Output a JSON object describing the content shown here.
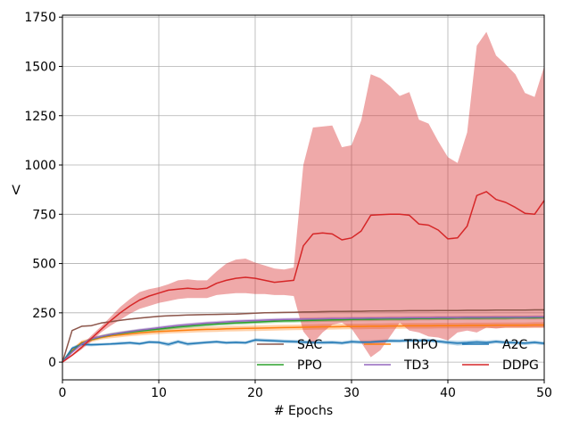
{
  "chart_data": {
    "type": "line",
    "title": "",
    "xlabel": "# Epochs",
    "ylabel": "V",
    "xlim": [
      0,
      50
    ],
    "ylim": [
      -90,
      1760
    ],
    "x_ticks": [
      0,
      10,
      20,
      30,
      40,
      50
    ],
    "y_ticks": [
      0,
      250,
      500,
      750,
      1000,
      1250,
      1500,
      1750
    ],
    "grid": true,
    "legend_position": "lower-right",
    "x": [
      0,
      1,
      2,
      3,
      4,
      5,
      6,
      7,
      8,
      9,
      10,
      11,
      12,
      13,
      14,
      15,
      16,
      17,
      18,
      19,
      20,
      21,
      22,
      23,
      24,
      25,
      26,
      27,
      28,
      29,
      30,
      31,
      32,
      33,
      34,
      35,
      36,
      37,
      38,
      39,
      40,
      41,
      42,
      43,
      44,
      45,
      46,
      47,
      48,
      49,
      50
    ],
    "series": [
      {
        "name": "SAC",
        "color": "#8c564b",
        "mean": [
          0,
          160,
          182,
          185,
          198,
          205,
          212,
          218,
          223,
          228,
          232,
          235,
          237,
          239,
          240,
          241,
          242,
          243,
          244,
          246,
          248,
          250,
          251,
          252,
          253,
          254,
          255,
          256,
          257,
          257,
          258,
          258,
          259,
          259,
          260,
          260,
          261,
          261,
          261,
          262,
          262,
          262,
          263,
          263,
          263,
          264,
          264,
          264,
          264,
          265,
          265
        ],
        "lower": [
          0,
          158,
          179,
          182,
          195,
          202,
          209,
          215,
          220,
          225,
          229,
          232,
          234,
          236,
          237,
          238,
          239,
          240,
          241,
          243,
          245,
          247,
          248,
          249,
          250,
          251,
          252,
          253,
          254,
          254,
          255,
          255,
          256,
          256,
          257,
          257,
          258,
          258,
          258,
          259,
          259,
          259,
          260,
          260,
          260,
          261,
          261,
          261,
          261,
          262,
          262
        ],
        "upper": [
          0,
          162,
          185,
          188,
          201,
          208,
          215,
          221,
          226,
          231,
          235,
          238,
          240,
          242,
          243,
          244,
          245,
          246,
          247,
          249,
          251,
          253,
          254,
          255,
          256,
          257,
          258,
          259,
          260,
          260,
          261,
          261,
          262,
          262,
          263,
          263,
          264,
          264,
          264,
          265,
          265,
          265,
          266,
          266,
          266,
          267,
          267,
          267,
          267,
          268,
          268
        ]
      },
      {
        "name": "TRPO",
        "color": "#ff7f0e",
        "mean": [
          0,
          60,
          100,
          112,
          125,
          133,
          138,
          143,
          148,
          152,
          155,
          158,
          160,
          162,
          164,
          166,
          167,
          169,
          170,
          171,
          172,
          173,
          174,
          175,
          176,
          177,
          178,
          179,
          179,
          180,
          181,
          181,
          182,
          182,
          183,
          183,
          184,
          184,
          184,
          185,
          185,
          185,
          186,
          186,
          186,
          187,
          187,
          187,
          187,
          188,
          188
        ],
        "lower": [
          0,
          52,
          90,
          102,
          114,
          121,
          126,
          131,
          135,
          139,
          142,
          145,
          147,
          149,
          151,
          152,
          153,
          155,
          156,
          157,
          158,
          159,
          160,
          161,
          162,
          163,
          164,
          165,
          165,
          166,
          167,
          167,
          168,
          168,
          169,
          169,
          170,
          170,
          170,
          171,
          171,
          171,
          172,
          172,
          172,
          173,
          173,
          173,
          173,
          174,
          174
        ],
        "upper": [
          0,
          68,
          110,
          122,
          136,
          145,
          150,
          155,
          161,
          165,
          168,
          171,
          173,
          175,
          177,
          180,
          181,
          183,
          184,
          185,
          186,
          187,
          188,
          189,
          190,
          191,
          192,
          193,
          193,
          194,
          195,
          195,
          196,
          196,
          197,
          197,
          198,
          198,
          198,
          199,
          199,
          199,
          200,
          200,
          200,
          201,
          201,
          201,
          201,
          202,
          202
        ]
      },
      {
        "name": "A2C",
        "color": "#1f77b4",
        "mean": [
          0,
          70,
          90,
          88,
          90,
          92,
          95,
          98,
          93,
          102,
          100,
          90,
          104,
          92,
          96,
          100,
          103,
          98,
          100,
          98,
          112,
          110,
          108,
          106,
          104,
          102,
          100,
          99,
          100,
          97,
          103,
          101,
          102,
          105,
          108,
          107,
          110,
          109,
          110,
          105,
          100,
          96,
          98,
          102,
          99,
          104,
          100,
          98,
          96,
          100,
          95
        ],
        "lower": [
          0,
          62,
          82,
          80,
          83,
          85,
          87,
          90,
          85,
          94,
          92,
          80,
          95,
          83,
          88,
          92,
          95,
          90,
          92,
          90,
          103,
          101,
          99,
          97,
          95,
          93,
          91,
          90,
          91,
          88,
          94,
          92,
          93,
          96,
          99,
          98,
          101,
          100,
          101,
          96,
          90,
          84,
          87,
          92,
          89,
          95,
          91,
          89,
          87,
          91,
          86
        ],
        "upper": [
          0,
          78,
          98,
          96,
          97,
          99,
          103,
          106,
          101,
          110,
          108,
          100,
          113,
          101,
          104,
          108,
          111,
          106,
          108,
          106,
          121,
          119,
          117,
          115,
          113,
          111,
          109,
          108,
          109,
          106,
          112,
          110,
          111,
          114,
          117,
          116,
          119,
          118,
          119,
          114,
          110,
          108,
          109,
          112,
          109,
          113,
          109,
          107,
          105,
          109,
          104
        ]
      },
      {
        "name": "PPO",
        "color": "#2ca02c",
        "mean": [
          0,
          55,
          95,
          115,
          128,
          138,
          145,
          152,
          158,
          163,
          168,
          173,
          178,
          182,
          186,
          190,
          193,
          196,
          199,
          201,
          203,
          205,
          207,
          209,
          210,
          211,
          212,
          213,
          214,
          215,
          216,
          217,
          217,
          218,
          219,
          219,
          220,
          221,
          221,
          222,
          222,
          223,
          223,
          223,
          224,
          224,
          224,
          225,
          225,
          225,
          226
        ],
        "lower": [
          0,
          49,
          88,
          107,
          120,
          129,
          136,
          143,
          149,
          154,
          159,
          164,
          169,
          173,
          177,
          181,
          184,
          187,
          190,
          192,
          194,
          196,
          198,
          200,
          201,
          202,
          203,
          204,
          205,
          206,
          207,
          208,
          208,
          209,
          210,
          210,
          211,
          212,
          212,
          213,
          213,
          214,
          214,
          214,
          215,
          215,
          215,
          216,
          216,
          216,
          217
        ],
        "upper": [
          0,
          61,
          102,
          123,
          136,
          147,
          154,
          161,
          167,
          172,
          177,
          182,
          187,
          191,
          195,
          199,
          202,
          205,
          208,
          210,
          212,
          214,
          216,
          218,
          219,
          220,
          221,
          222,
          223,
          224,
          225,
          226,
          226,
          227,
          228,
          228,
          229,
          230,
          230,
          231,
          231,
          232,
          232,
          232,
          233,
          233,
          233,
          234,
          234,
          234,
          235
        ]
      },
      {
        "name": "TD3",
        "color": "#9467bd",
        "mean": [
          0,
          50,
          92,
          118,
          130,
          140,
          148,
          155,
          162,
          168,
          174,
          180,
          186,
          190,
          194,
          198,
          201,
          204,
          207,
          209,
          211,
          213,
          215,
          216,
          217,
          218,
          219,
          220,
          221,
          221,
          222,
          222,
          223,
          223,
          224,
          224,
          225,
          225,
          225,
          226,
          226,
          226,
          227,
          227,
          227,
          228,
          228,
          228,
          228,
          229,
          229
        ],
        "lower": [
          0,
          44,
          85,
          110,
          122,
          132,
          140,
          147,
          154,
          160,
          166,
          172,
          178,
          182,
          186,
          190,
          193,
          196,
          199,
          201,
          203,
          205,
          207,
          208,
          209,
          210,
          211,
          212,
          213,
          213,
          214,
          214,
          215,
          215,
          216,
          216,
          217,
          217,
          217,
          218,
          218,
          218,
          219,
          219,
          219,
          220,
          220,
          220,
          220,
          221,
          221
        ],
        "upper": [
          0,
          56,
          99,
          126,
          138,
          148,
          156,
          163,
          170,
          176,
          182,
          188,
          194,
          198,
          202,
          206,
          209,
          212,
          215,
          217,
          219,
          221,
          223,
          224,
          225,
          226,
          227,
          228,
          229,
          229,
          230,
          230,
          231,
          231,
          232,
          232,
          233,
          233,
          233,
          234,
          234,
          234,
          235,
          235,
          235,
          236,
          236,
          236,
          236,
          237,
          237
        ]
      },
      {
        "name": "DDPG",
        "color": "#d62728",
        "mean": [
          0,
          35,
          75,
          120,
          165,
          210,
          250,
          285,
          315,
          335,
          350,
          365,
          370,
          375,
          370,
          375,
          400,
          415,
          425,
          430,
          425,
          415,
          405,
          410,
          415,
          590,
          650,
          655,
          650,
          620,
          630,
          665,
          745,
          748,
          750,
          750,
          745,
          700,
          695,
          670,
          625,
          630,
          690,
          845,
          865,
          825,
          810,
          785,
          755,
          750,
          820
        ],
        "lower": [
          0,
          30,
          65,
          105,
          150,
          185,
          215,
          245,
          270,
          285,
          300,
          310,
          320,
          325,
          325,
          325,
          340,
          345,
          350,
          350,
          345,
          345,
          340,
          340,
          335,
          155,
          95,
          150,
          190,
          200,
          170,
          100,
          25,
          60,
          130,
          200,
          160,
          150,
          130,
          125,
          110,
          150,
          160,
          150,
          175,
          170,
          175,
          175,
          175,
          175,
          175
        ],
        "upper": [
          0,
          40,
          85,
          135,
          180,
          230,
          280,
          320,
          355,
          370,
          380,
          395,
          415,
          420,
          415,
          415,
          460,
          500,
          520,
          525,
          505,
          490,
          475,
          470,
          480,
          1000,
          1190,
          1195,
          1200,
          1090,
          1100,
          1225,
          1460,
          1440,
          1400,
          1350,
          1370,
          1230,
          1210,
          1120,
          1040,
          1010,
          1165,
          1605,
          1675,
          1555,
          1510,
          1460,
          1365,
          1345,
          1500
        ]
      }
    ]
  }
}
